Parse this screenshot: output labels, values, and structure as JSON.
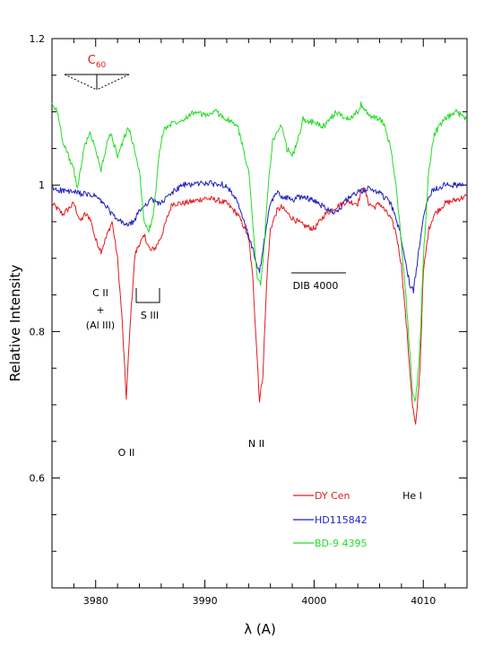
{
  "chart_data": {
    "type": "line",
    "xlabel": "λ (A)",
    "ylabel": "Relative Intensity",
    "xlim": [
      3976,
      4014
    ],
    "ylim": [
      0.45,
      1.2
    ],
    "xticks": [
      3980,
      3990,
      4000,
      4010
    ],
    "yticks": [
      0.6,
      0.8,
      1,
      1.2
    ],
    "ytick_labels": [
      "0.6",
      "0.8",
      "1",
      "1.2"
    ],
    "grid": false,
    "legend_position": "lower-right",
    "series": [
      {
        "name": "DY Cen",
        "color": "#e41a1c",
        "x": [
          3976,
          3977,
          3978,
          3978.6,
          3979,
          3979.5,
          3980,
          3980.5,
          3981,
          3981.5,
          3982,
          3982.4,
          3982.8,
          3983.2,
          3983.6,
          3984,
          3984.5,
          3985,
          3985.5,
          3986,
          3987,
          3988,
          3989,
          3990,
          3991,
          3992,
          3993,
          3994,
          3994.4,
          3994.8,
          3995,
          3995.3,
          3995.7,
          3996,
          3996.6,
          3997,
          3998,
          3999,
          4000,
          4001,
          4002,
          4003,
          4004,
          4004.5,
          4005,
          4005.5,
          4006,
          4006.5,
          4007,
          4007.5,
          4008,
          4008.5,
          4009,
          4009.3,
          4009.7,
          4010,
          4010.5,
          4011,
          4012,
          4013,
          4014
        ],
        "y": [
          0.975,
          0.96,
          0.975,
          0.95,
          0.96,
          0.955,
          0.925,
          0.91,
          0.93,
          0.95,
          0.9,
          0.82,
          0.71,
          0.82,
          0.905,
          0.92,
          0.93,
          0.91,
          0.915,
          0.93,
          0.975,
          0.975,
          0.978,
          0.982,
          0.98,
          0.975,
          0.96,
          0.93,
          0.87,
          0.76,
          0.705,
          0.74,
          0.88,
          0.94,
          0.965,
          0.97,
          0.955,
          0.945,
          0.94,
          0.96,
          0.97,
          0.978,
          0.975,
          1.0,
          0.975,
          0.97,
          0.975,
          0.965,
          0.955,
          0.935,
          0.89,
          0.8,
          0.7,
          0.67,
          0.75,
          0.88,
          0.94,
          0.96,
          0.975,
          0.98,
          0.985
        ]
      },
      {
        "name": "HD115842",
        "color": "#1f1fbf",
        "x": [
          3976,
          3978,
          3980,
          3981,
          3981.5,
          3982,
          3983,
          3983.6,
          3984,
          3985,
          3986,
          3987,
          3988,
          3990,
          3992,
          3993,
          3993.8,
          3994.5,
          3995,
          3995.5,
          3996,
          3996.6,
          3997,
          3998,
          3999,
          4000,
          4001,
          4002,
          4003,
          4004,
          4005,
          4006,
          4007,
          4007.8,
          4008.3,
          4008.8,
          4009.1,
          4009.5,
          4010,
          4010.5,
          4011,
          4012,
          4014
        ],
        "y": [
          0.995,
          0.99,
          0.985,
          0.97,
          0.96,
          0.952,
          0.945,
          0.952,
          0.965,
          0.98,
          0.975,
          0.99,
          1.0,
          1.003,
          1.0,
          0.975,
          0.94,
          0.905,
          0.88,
          0.93,
          0.975,
          0.99,
          0.985,
          0.98,
          0.985,
          0.978,
          0.97,
          0.962,
          0.98,
          0.99,
          0.995,
          0.99,
          0.975,
          0.94,
          0.9,
          0.862,
          0.855,
          0.9,
          0.96,
          0.985,
          0.995,
          1.0,
          1.0
        ]
      },
      {
        "name": "BD-9 4395",
        "color": "#22dd22",
        "x": [
          3976,
          3976.5,
          3977,
          3978,
          3978.3,
          3978.6,
          3979,
          3979.5,
          3980,
          3980.5,
          3981,
          3981.4,
          3982,
          3983,
          3984,
          3984.4,
          3984.8,
          3985.3,
          3985.8,
          3986.2,
          3986.6,
          3987,
          3988,
          3989,
          3990,
          3991,
          3992,
          3993,
          3994,
          3994.5,
          3994.8,
          3995.1,
          3995.4,
          3995.8,
          3996.2,
          3997,
          3997.5,
          3998,
          3998.4,
          3999,
          4000,
          4001,
          4002,
          4003,
          4004,
          4004.3,
          4005,
          4006,
          4006.5,
          4007,
          4007.5,
          4008,
          4008.5,
          4009,
          4009.3,
          4009.7,
          4010,
          4010.5,
          4011,
          4012,
          4013,
          4014
        ],
        "y": [
          1.11,
          1.1,
          1.06,
          1.02,
          0.995,
          1.02,
          1.055,
          1.07,
          1.05,
          1.02,
          1.055,
          1.07,
          1.04,
          1.08,
          1.02,
          0.955,
          0.935,
          0.96,
          1.04,
          1.075,
          1.08,
          1.085,
          1.09,
          1.1,
          1.095,
          1.1,
          1.09,
          1.08,
          1.02,
          0.93,
          0.87,
          0.865,
          0.91,
          1.0,
          1.06,
          1.08,
          1.05,
          1.04,
          1.055,
          1.09,
          1.085,
          1.08,
          1.1,
          1.09,
          1.1,
          1.11,
          1.095,
          1.09,
          1.08,
          1.05,
          1.0,
          0.92,
          0.83,
          0.72,
          0.705,
          0.78,
          0.9,
          1.02,
          1.07,
          1.09,
          1.1,
          1.09
        ]
      }
    ],
    "annotations": {
      "c60": {
        "base": "C",
        "sub": "60"
      },
      "c2": "C II",
      "plus": "+",
      "al3": "(Al III)",
      "s3": "S  III",
      "o2": "O II",
      "n2": "N II",
      "dib": "DIB 4000",
      "he1": "He I"
    }
  }
}
